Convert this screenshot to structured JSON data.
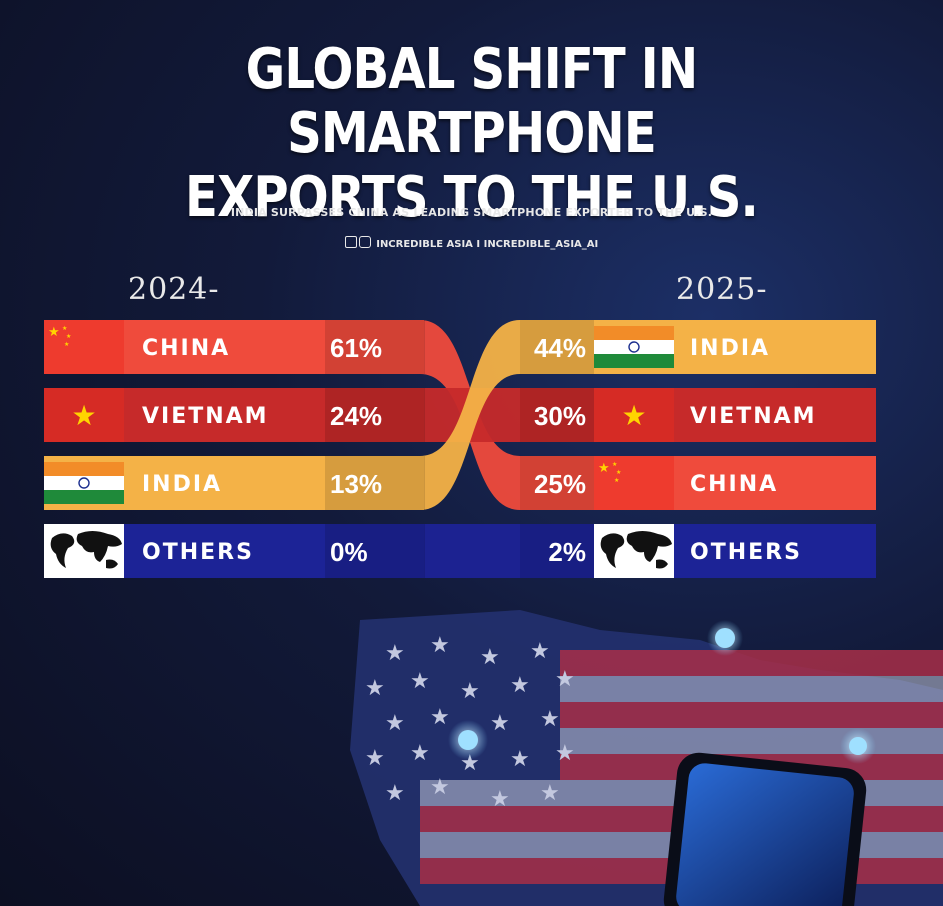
{
  "header": {
    "title_line1": "GLOBAL SHIFT IN SMARTPHONE",
    "title_line2": "EXPORTS TO THE U.S.",
    "subtitle": "INDIA SURPASSES CHINA AS LEADING SMARTPHONE EXPORTER TO THE U.S.",
    "credit": "INCREDIBLE ASIA I INCREDIBLE_ASIA_AI"
  },
  "chart_data": {
    "type": "bar",
    "panels": [
      {
        "period": "2024-",
        "rows": [
          {
            "country": "CHINA",
            "value": 61,
            "label": "61%",
            "color": "#ef4b3c",
            "flag": "china"
          },
          {
            "country": "VIETNAM",
            "value": 24,
            "label": "24%",
            "color": "#c62a2a",
            "flag": "vietnam"
          },
          {
            "country": "INDIA",
            "value": 13,
            "label": "13%",
            "color": "#f4b247",
            "flag": "india"
          },
          {
            "country": "OTHERS",
            "value": 0,
            "label": "0%",
            "color": "#1c2396",
            "flag": "world"
          }
        ]
      },
      {
        "period": "2025-",
        "rows": [
          {
            "country": "INDIA",
            "value": 44,
            "label": "44%",
            "color": "#f4b247",
            "flag": "india"
          },
          {
            "country": "VIETNAM",
            "value": 30,
            "label": "30%",
            "color": "#c62a2a",
            "flag": "vietnam"
          },
          {
            "country": "CHINA",
            "value": 25,
            "label": "25%",
            "color": "#ef4b3c",
            "flag": "china"
          },
          {
            "country": "OTHERS",
            "value": 2,
            "label": "2%",
            "color": "#1c2396",
            "flag": "world"
          }
        ]
      }
    ],
    "unit": "%"
  },
  "icons": [
    "facebook-icon",
    "instagram-icon",
    "world-map-icon",
    "user-pin-icon",
    "smartphone-icon",
    "us-flag-map"
  ]
}
